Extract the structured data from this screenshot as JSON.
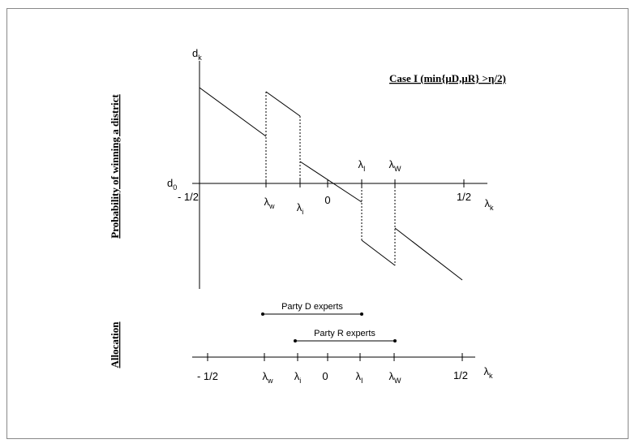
{
  "title": "Case I (min{μD,μR} >η/2)",
  "y_axis_label": "Probability of winning a district",
  "allocation_label": "Allocation",
  "top_axis": {
    "y_label": {
      "main": "d",
      "sub": "k"
    },
    "origin_label": {
      "main": "d",
      "sub": "0"
    },
    "below": [
      {
        "main": "- 1/2"
      },
      {
        "main": "λ",
        "sub": "w"
      },
      {
        "main": "λ",
        "sub": "i"
      },
      {
        "main": "0"
      },
      {
        "main": "1/2"
      },
      {
        "main": "λ",
        "sub": "k"
      }
    ],
    "above": [
      {
        "main": "λ",
        "sub": "I"
      },
      {
        "main": "λ",
        "sub": "W"
      }
    ]
  },
  "bottom_axis": {
    "labels": [
      {
        "main": "- 1/2"
      },
      {
        "main": "λ",
        "sub": "w"
      },
      {
        "main": "λ",
        "sub": "i"
      },
      {
        "main": "0"
      },
      {
        "main": "λ",
        "sub": "I"
      },
      {
        "main": "λ",
        "sub": "W"
      },
      {
        "main": "1/2"
      },
      {
        "main": "λ",
        "sub": "k"
      }
    ],
    "intervals": [
      {
        "label": "Party D experts"
      },
      {
        "label": "Party R experts"
      }
    ]
  }
}
